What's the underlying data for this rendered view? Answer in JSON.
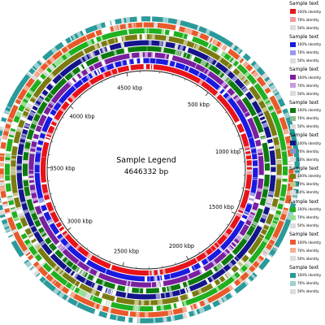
{
  "center": {
    "title": "Sample Legend",
    "genome_size": "4646332 bp"
  },
  "genome_length": 4646332,
  "tick_labels": [
    {
      "label": "500 kbp",
      "position": 500000
    },
    {
      "label": "1000 kbp",
      "position": 1000000
    },
    {
      "label": "1500 kbp",
      "position": 1500000
    },
    {
      "label": "2000 kbp",
      "position": 2000000
    },
    {
      "label": "2500 kbp",
      "position": 2500000
    },
    {
      "label": "3000 kbp",
      "position": 3000000
    },
    {
      "label": "3500 kbp",
      "position": 3500000
    },
    {
      "label": "4000 kbp",
      "position": 4000000
    },
    {
      "label": "4500 kbp",
      "position": 4500000
    }
  ],
  "rings": [
    {
      "title": "Sample text",
      "color_100": "#e8131a",
      "color_70": "#f29aa0",
      "color_50": "#dcdcdc"
    },
    {
      "title": "Sample text",
      "color_100": "#1a1ae0",
      "color_70": "#9b9bec",
      "color_50": "#dcdcdc"
    },
    {
      "title": "Sample text",
      "color_100": "#7a1fa0",
      "color_70": "#c79be0",
      "color_50": "#dcdcdc"
    },
    {
      "title": "Sample text",
      "color_100": "#0d7a0d",
      "color_70": "#8fbf8f",
      "color_50": "#dcdcdc"
    },
    {
      "title": "Sample text",
      "color_100": "#14148c",
      "color_70": "#9090cc",
      "color_50": "#dcdcdc"
    },
    {
      "title": "Sample text",
      "color_100": "#7a7a10",
      "color_70": "#c4c48c",
      "color_50": "#dcdcdc"
    },
    {
      "title": "Sample text",
      "color_100": "#20b020",
      "color_70": "#96e096",
      "color_50": "#dcdcdc"
    },
    {
      "title": "Sample text",
      "color_100": "#e85a2a",
      "color_70": "#f4ad94",
      "color_50": "#dcdcdc"
    },
    {
      "title": "Sample text",
      "color_100": "#2a9a9a",
      "color_70": "#9fd0d0",
      "color_50": "#dcdcdc"
    }
  ],
  "legend_labels": {
    "identity_100": "100% identity",
    "identity_70": "70% identity",
    "identity_50": "50% identity"
  }
}
